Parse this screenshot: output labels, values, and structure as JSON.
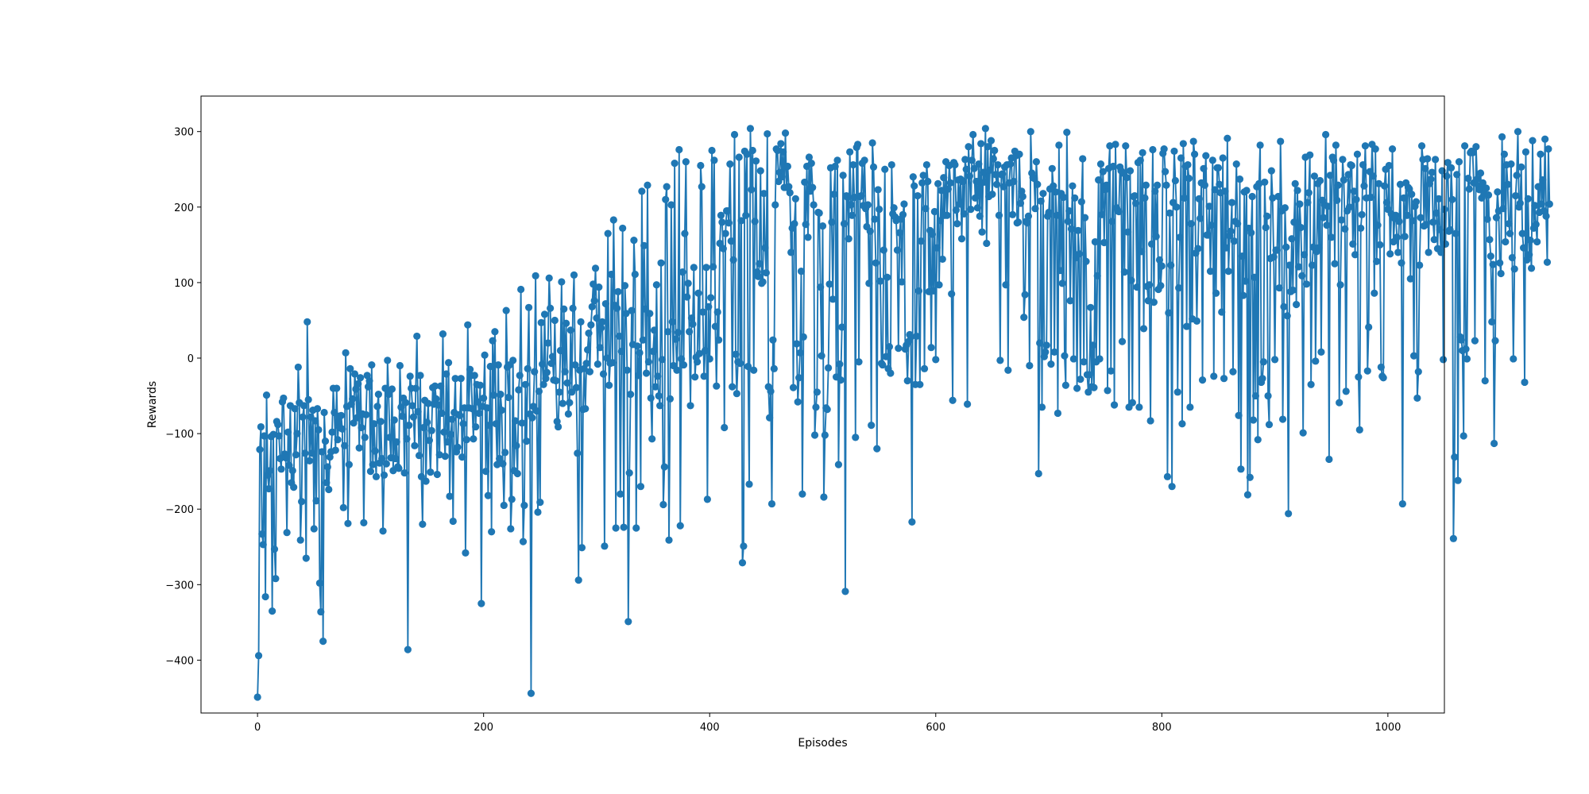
{
  "chart_data": {
    "type": "line",
    "title": "",
    "xlabel": "Episodes",
    "ylabel": "Rewards",
    "xlim": [
      -50,
      1050
    ],
    "ylim": [
      -470,
      347
    ],
    "xticks": [
      0,
      200,
      400,
      600,
      800,
      1000
    ],
    "xtick_labels": [
      "0",
      "200",
      "400",
      "600",
      "800",
      "1000"
    ],
    "yticks": [
      -400,
      -300,
      -200,
      -100,
      0,
      100,
      200,
      300
    ],
    "ytick_labels": [
      "−400",
      "−300",
      "−200",
      "−100",
      "0",
      "100",
      "200",
      "300"
    ],
    "grid": false,
    "legend": "none",
    "marker": "circle",
    "color": "#1f77b4",
    "series": [
      {
        "x_start": 0,
        "x_step": 1,
        "values": [
          -449,
          -394,
          -121,
          -91,
          -233,
          -247,
          -103,
          -316,
          -49,
          -155,
          -173,
          -149,
          -104,
          -335,
          -101,
          -253,
          -292,
          -84,
          -88,
          -103,
          -133,
          -147,
          -58,
          -53,
          -127,
          -132,
          -231,
          -98,
          -142,
          -63,
          -165,
          -149,
          -171,
          -67,
          -128,
          -100,
          -12,
          -59,
          -241,
          -190,
          -78,
          -63,
          -126,
          -265,
          48,
          -55,
          -136,
          -78,
          -126,
          -69,
          -226,
          -83,
          -189,
          -67,
          -95,
          -298,
          -336,
          -124,
          -375,
          -72,
          -110,
          -165,
          -144,
          -174,
          -131,
          -124,
          -98,
          -40,
          -72,
          -122,
          -40,
          -108,
          -77,
          -92,
          -76,
          -94,
          -198,
          -116,
          7,
          -64,
          -219,
          -141,
          -14,
          -61,
          -54,
          -86,
          -21,
          -41,
          -79,
          -34,
          -119,
          -26,
          -92,
          -74,
          -218,
          -105,
          -75,
          -23,
          -38,
          -30,
          -150,
          -9,
          -141,
          -87,
          -123,
          -157,
          -64,
          -48,
          -139,
          -84,
          -133,
          -229,
          -155,
          -40,
          -140,
          -3,
          -48,
          -105,
          -132,
          -41,
          -149,
          -82,
          -133,
          -111,
          -144,
          -146,
          -10,
          -65,
          -77,
          -53,
          -152,
          -59,
          -107,
          -386,
          -89,
          -24,
          -40,
          -63,
          -78,
          -116,
          -40,
          29,
          -71,
          -129,
          -23,
          -157,
          -220,
          -92,
          -56,
          -163,
          -85,
          -60,
          -109,
          -151,
          -96,
          -39,
          -61,
          -37,
          -54,
          -154,
          -62,
          -128,
          -37,
          -73,
          32,
          -98,
          -130,
          -21,
          -111,
          -6,
          -183,
          -101,
          -81,
          -216,
          -72,
          -27,
          -124,
          -118,
          -75,
          -76,
          -27,
          -131,
          -87,
          -66,
          -258,
          -108,
          44,
          -66,
          -15,
          -23,
          -67,
          -107,
          -23,
          -91,
          -35,
          -58,
          -73,
          -36,
          -325,
          -64,
          -53,
          4,
          -150,
          -66,
          -182,
          -89,
          -11,
          -230,
          23,
          -49,
          35,
          -87,
          -141,
          -9,
          -133,
          -48,
          -69,
          -140,
          -195,
          -125,
          63,
          -12,
          -52,
          -9,
          -226,
          -187,
          -3,
          -149,
          -83,
          -116,
          -153,
          -42,
          -23,
          91,
          -86,
          -243,
          -195,
          -35,
          -110,
          -14,
          67,
          -74,
          -444,
          -79,
          -64,
          -18,
          109,
          -70,
          -204,
          -44,
          -191,
          47,
          -8,
          -35,
          58,
          -27,
          -19,
          20,
          106,
          66,
          -7,
          2,
          -29,
          50,
          -30,
          -84,
          -91,
          -45,
          10,
          101,
          -60,
          65,
          -18,
          46,
          -33,
          -74,
          -59,
          37,
          -45,
          66,
          110,
          -9,
          -39,
          -126,
          -294,
          -16,
          48,
          -251,
          -68,
          -14,
          -67,
          -7,
          11,
          33,
          -18,
          44,
          68,
          98,
          76,
          119,
          53,
          -8,
          94,
          14,
          40,
          48,
          -21,
          -249,
          72,
          0,
          165,
          -36,
          -7,
          111,
          -6,
          183,
          70,
          -225,
          66,
          88,
          29,
          -180,
          9,
          172,
          -224,
          96,
          59,
          -16,
          -349,
          -152,
          -48,
          63,
          18,
          156,
          111,
          -225,
          16,
          -23,
          7,
          -170,
          221,
          24,
          149,
          65,
          -20,
          229,
          -5,
          59,
          -53,
          -107,
          9,
          37,
          -38,
          97,
          -24,
          -50,
          -63,
          126,
          -2,
          -194,
          -144,
          210,
          227,
          35,
          -241,
          -54,
          203,
          48,
          -10,
          258,
          25,
          -16,
          34,
          276,
          -222,
          -1,
          114,
          -9,
          165,
          260,
          81,
          99,
          35,
          -63,
          53,
          45,
          120,
          -25,
          1,
          -5,
          86,
          6,
          255,
          227,
          61,
          -24,
          10,
          120,
          -187,
          68,
          -1,
          80,
          275,
          121,
          262,
          42,
          -37,
          61,
          24,
          152,
          189,
          180,
          145,
          -92,
          165,
          195,
          195,
          179,
          257,
          155,
          -38,
          130,
          296,
          5,
          -47,
          -5,
          266,
          -7,
          182,
          -271,
          -249,
          274,
          189,
          270,
          -11,
          -167,
          304,
          223,
          275,
          -16,
          181,
          261,
          114,
          108,
          125,
          248,
          99,
          101,
          218,
          146,
          113,
          297,
          -38,
          -79,
          -44,
          -193,
          24,
          -14,
          203,
          277,
          275,
          234,
          246,
          284,
          240,
          273,
          226,
          298,
          226,
          254,
          227,
          219,
          140,
          172,
          -39,
          178,
          211,
          19,
          -58,
          -26,
          7,
          115,
          -180,
          28,
          233,
          177,
          254,
          160,
          266,
          221,
          258,
          226,
          203,
          -102,
          -65,
          -45,
          193,
          192,
          94,
          3,
          175,
          -184,
          -102,
          -66,
          -68,
          -13,
          98,
          252,
          180,
          78,
          217,
          254,
          -25,
          262,
          -141,
          -8,
          -29,
          41,
          242,
          178,
          -309,
          215,
          213,
          158,
          273,
          203,
          189,
          256,
          213,
          -105,
          279,
          283,
          -5,
          214,
          215,
          258,
          202,
          262,
          198,
          174,
          203,
          99,
          168,
          -89,
          285,
          253,
          184,
          126,
          -120,
          223,
          197,
          102,
          -7,
          -9,
          143,
          250,
          2,
          107,
          -14,
          15,
          -20,
          256,
          191,
          199,
          187,
          182,
          143,
          13,
          166,
          184,
          101,
          190,
          204,
          12,
          17,
          -30,
          22,
          31,
          28,
          -217,
          240,
          228,
          -35,
          29,
          215,
          89,
          -35,
          155,
          232,
          242,
          -14,
          198,
          256,
          234,
          88,
          169,
          14,
          164,
          89,
          194,
          -2,
          146,
          231,
          97,
          182,
          222,
          131,
          239,
          189,
          260,
          189,
          224,
          255,
          232,
          85,
          -56,
          259,
          256,
          196,
          178,
          236,
          204,
          237,
          158,
          234,
          191,
          263,
          250,
          -61,
          280,
          241,
          197,
          262,
          296,
          251,
          212,
          234,
          199,
          257,
          188,
          284,
          167,
          246,
          233,
          304,
          152,
          280,
          214,
          249,
          288,
          217,
          264,
          275,
          243,
          230,
          256,
          189,
          -3,
          243,
          244,
          227,
          253,
          97,
          256,
          -16,
          232,
          257,
          265,
          190,
          234,
          274,
          268,
          179,
          180,
          270,
          205,
          221,
          214,
          54,
          84,
          181,
          179,
          188,
          -10,
          300,
          245,
          239,
          238,
          198,
          260,
          230,
          -153,
          20,
          208,
          -65,
          218,
          2,
          8,
          17,
          188,
          193,
          224,
          -8,
          251,
          228,
          8,
          220,
          189,
          -73,
          282,
          116,
          218,
          99,
          213,
          3,
          -36,
          299,
          181,
          195,
          76,
          171,
          228,
          -1,
          212,
          133,
          -40,
          169,
          138,
          -28,
          207,
          264,
          -5,
          186,
          128,
          -22,
          -45,
          -22,
          67,
          -38,
          17,
          -39,
          154,
          -5,
          109,
          236,
          -1,
          257,
          190,
          247,
          153,
          223,
          229,
          -43,
          251,
          281,
          -17,
          181,
          254,
          -62,
          283,
          199,
          195,
          194,
          253,
          248,
          22,
          245,
          114,
          281,
          239,
          167,
          -65,
          248,
          103,
          -59,
          214,
          215,
          205,
          94,
          259,
          -65,
          262,
          141,
          272,
          39,
          212,
          229,
          95,
          76,
          97,
          -83,
          151,
          276,
          74,
          221,
          161,
          229,
          91,
          130,
          96,
          122,
          271,
          277,
          247,
          229,
          -157,
          60,
          192,
          123,
          -170,
          206,
          274,
          235,
          200,
          -45,
          93,
          160,
          265,
          -87,
          284,
          212,
          254,
          42,
          256,
          238,
          -65,
          178,
          52,
          287,
          270,
          139,
          49,
          145,
          211,
          185,
          232,
          -29,
          251,
          229,
          268,
          163,
          163,
          201,
          115,
          176,
          262,
          -24,
          223,
          86,
          252,
          252,
          230,
          219,
          61,
          265,
          -27,
          221,
          146,
          291,
          115,
          162,
          168,
          206,
          -18,
          155,
          181,
          257,
          178,
          -76,
          237,
          -147,
          135,
          83,
          220,
          102,
          222,
          -181,
          172,
          -158,
          166,
          214,
          -82,
          107,
          -50,
          227,
          -108,
          231,
          282,
          -32,
          -27,
          -5,
          233,
          173,
          188,
          -50,
          -88,
          132,
          248,
          212,
          134,
          -2,
          143,
          143,
          214,
          93,
          287,
          195,
          -81,
          68,
          199,
          147,
          56,
          -206,
          123,
          88,
          158,
          90,
          180,
          231,
          71,
          222,
          121,
          204,
          173,
          109,
          -99,
          137,
          266,
          98,
          206,
          219,
          269,
          -35,
          123,
          147,
          241,
          -4,
          141,
          231,
          146,
          235,
          8,
          209,
          186,
          203,
          296,
          176,
          201,
          -134,
          242,
          160,
          266,
          262,
          125,
          282,
          209,
          229,
          -59,
          97,
          183,
          263,
          236,
          171,
          -44,
          195,
          243,
          200,
          256,
          255,
          151,
          221,
          137,
          210,
          270,
          -25,
          -95,
          172,
          190,
          256,
          228,
          281,
          212,
          -17,
          41,
          247,
          213,
          283,
          241,
          86,
          277,
          128,
          176,
          231,
          150,
          -12,
          -24,
          -26,
          228,
          250,
          206,
          197,
          255,
          138,
          191,
          277,
          154,
          185,
          189,
          160,
          140,
          181,
          230,
          126,
          -193,
          212,
          161,
          232,
          189,
          226,
          224,
          105,
          217,
          182,
          3,
          201,
          207,
          -53,
          -18,
          123,
          186,
          281,
          263,
          175,
          251,
          177,
          264,
          140,
          231,
          237,
          246,
          180,
          157,
          263,
          192,
          145,
          211,
          170,
          140,
          248,
          -2,
          197,
          151,
          241,
          259,
          168,
          170,
          252,
          210,
          -239,
          -131,
          165,
          243,
          -162,
          260,
          28,
          24,
          10,
          -103,
          281,
          12,
          -1,
          238,
          224,
          272,
          274,
          272,
          232,
          23,
          280,
          237,
          228,
          223,
          245,
          212,
          232,
          217,
          -30,
          225,
          184,
          216,
          157,
          135,
          48,
          124,
          -113,
          23,
          186,
          220,
          195,
          126,
          112,
          293,
          198,
          270,
          154,
          256,
          230,
          178,
          165,
          257,
          133,
          -1,
          118,
          215,
          242,
          300,
          200,
          205,
          253,
          165,
          146,
          -32,
          273,
          130,
          211,
          137,
          156,
          119,
          288,
          172,
          202,
          177,
          154,
          227,
          193,
          270,
          204,
          236,
          195,
          290,
          188,
          127,
          277,
          204
        ]
      }
    ]
  }
}
